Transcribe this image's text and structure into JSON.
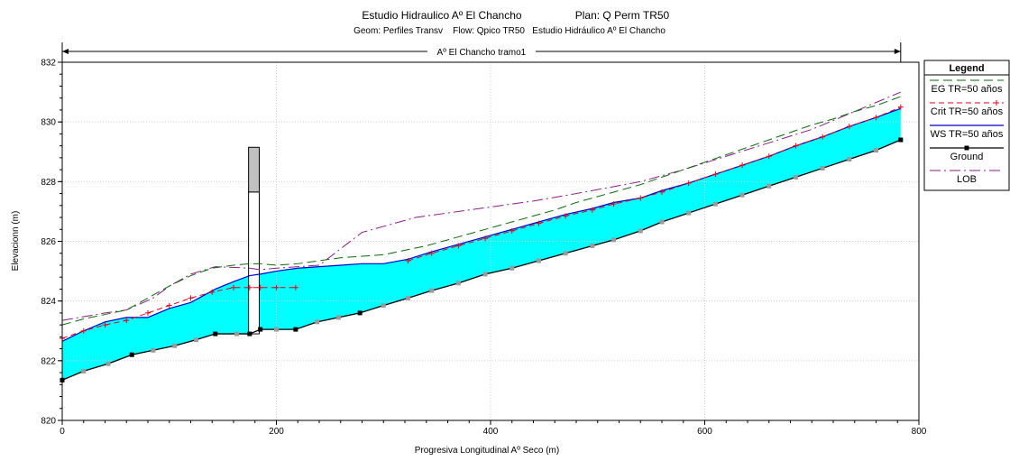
{
  "chart_data": {
    "type": "line",
    "title": "Estudio Hidraulico Aº El Chancho",
    "plan": "Plan: Q Perm TR50",
    "subtitle": "Geom: Perfiles Transv    Flow: Qpico TR50   Estudio Hidráulico Aº El Chancho",
    "reach_label": "Aº El Chancho tramo1",
    "xlabel": "Progresiva Longitudinal Aº Seco (m)",
    "ylabel": "Elevacionn (m)",
    "xlim": [
      0,
      800
    ],
    "ylim": [
      820,
      832
    ],
    "xticks": [
      0,
      200,
      400,
      600,
      800
    ],
    "yticks": [
      820,
      822,
      824,
      826,
      828,
      830,
      832
    ],
    "legend_title": "Legend",
    "legend_position": "right",
    "series": [
      {
        "name": "EG  TR=50 años",
        "color": "#0a6b0a",
        "style": "longdash",
        "x": [
          0,
          20,
          40,
          60,
          80,
          100,
          120,
          140,
          160,
          175,
          185,
          200,
          220,
          240,
          260,
          280,
          300,
          320,
          340,
          360,
          380,
          400,
          420,
          440,
          460,
          480,
          500,
          520,
          540,
          560,
          580,
          600,
          620,
          640,
          660,
          680,
          700,
          720,
          740,
          760,
          783
        ],
        "y": [
          823.2,
          823.4,
          823.55,
          823.7,
          824.1,
          824.5,
          824.85,
          825.1,
          825.2,
          825.25,
          825.25,
          825.2,
          825.25,
          825.35,
          825.45,
          825.5,
          825.55,
          825.7,
          825.85,
          826.05,
          826.25,
          826.45,
          826.65,
          826.85,
          827.05,
          827.3,
          827.5,
          827.7,
          827.9,
          828.15,
          828.4,
          828.65,
          828.9,
          829.15,
          829.4,
          829.65,
          829.9,
          830.1,
          830.35,
          830.55,
          830.85
        ]
      },
      {
        "name": "Crit  TR=50 años",
        "color": "#e8001c",
        "style": "dash-plus",
        "x": [
          0,
          20,
          40,
          60,
          80,
          100,
          120,
          140,
          160,
          175,
          185,
          200,
          218
        ],
        "y": [
          822.75,
          823.0,
          823.2,
          823.35,
          823.6,
          823.85,
          824.1,
          824.3,
          824.45,
          824.45,
          824.45,
          824.45,
          824.45
        ],
        "x2": [
          323,
          345,
          370,
          395,
          420,
          445,
          470,
          495,
          515,
          540,
          560,
          585,
          610,
          635,
          660,
          685,
          710,
          735,
          760,
          783
        ],
        "y2": [
          825.35,
          825.6,
          825.85,
          826.1,
          826.35,
          826.6,
          826.85,
          827.05,
          827.25,
          827.45,
          827.65,
          827.95,
          828.25,
          828.55,
          828.85,
          829.2,
          829.5,
          829.85,
          830.15,
          830.5
        ]
      },
      {
        "name": "WS  TR=50 años",
        "color": "#0000cc",
        "style": "solid",
        "x": [
          0,
          20,
          40,
          60,
          80,
          100,
          120,
          143,
          160,
          175,
          185,
          200,
          220,
          240,
          260,
          280,
          300,
          323,
          345,
          370,
          395,
          420,
          445,
          470,
          495,
          515,
          540,
          560,
          585,
          610,
          635,
          660,
          685,
          710,
          735,
          760,
          783
        ],
        "y": [
          822.65,
          823.0,
          823.3,
          823.45,
          823.45,
          823.75,
          823.95,
          824.4,
          824.65,
          824.85,
          824.9,
          825.0,
          825.1,
          825.15,
          825.2,
          825.25,
          825.25,
          825.4,
          825.65,
          825.9,
          826.15,
          826.4,
          826.65,
          826.9,
          827.1,
          827.3,
          827.45,
          827.7,
          827.95,
          828.25,
          828.55,
          828.85,
          829.2,
          829.5,
          829.85,
          830.15,
          830.45
        ]
      },
      {
        "name": "Ground",
        "color": "#000000",
        "style": "solid-square",
        "x": [
          0,
          20,
          43,
          65,
          85,
          105,
          125,
          143,
          163,
          175,
          185,
          200,
          218,
          238,
          258,
          278,
          300,
          323,
          345,
          370,
          395,
          420,
          445,
          470,
          495,
          515,
          540,
          560,
          585,
          610,
          635,
          660,
          685,
          710,
          735,
          760,
          783
        ],
        "y": [
          821.35,
          821.65,
          821.9,
          822.2,
          822.35,
          822.5,
          822.7,
          822.9,
          822.9,
          822.9,
          823.05,
          823.05,
          823.05,
          823.3,
          823.45,
          823.6,
          823.85,
          824.1,
          824.35,
          824.6,
          824.9,
          825.1,
          825.35,
          825.6,
          825.85,
          826.05,
          826.35,
          826.65,
          826.95,
          827.25,
          827.55,
          827.85,
          828.15,
          828.45,
          828.75,
          829.05,
          829.4
        ]
      },
      {
        "name": "LOB",
        "color": "#8a1c8a",
        "style": "dashdot",
        "x": [
          0,
          40,
          60,
          85,
          100,
          120,
          143,
          175,
          185,
          200,
          240,
          280,
          330,
          380,
          440,
          480,
          540,
          580,
          620,
          660,
          700,
          740,
          783
        ],
        "y": [
          823.35,
          823.6,
          823.7,
          824.1,
          824.5,
          824.9,
          825.15,
          825.1,
          825.05,
          825.1,
          825.2,
          826.3,
          826.8,
          827.05,
          827.35,
          827.6,
          828.0,
          828.4,
          828.85,
          829.3,
          829.75,
          830.35,
          831.0
        ]
      }
    ],
    "structure": {
      "x_start": 174,
      "x_end": 184,
      "deck_top": 829.15,
      "deck_bottom": 827.65,
      "opening_bottom": 822.9
    }
  }
}
